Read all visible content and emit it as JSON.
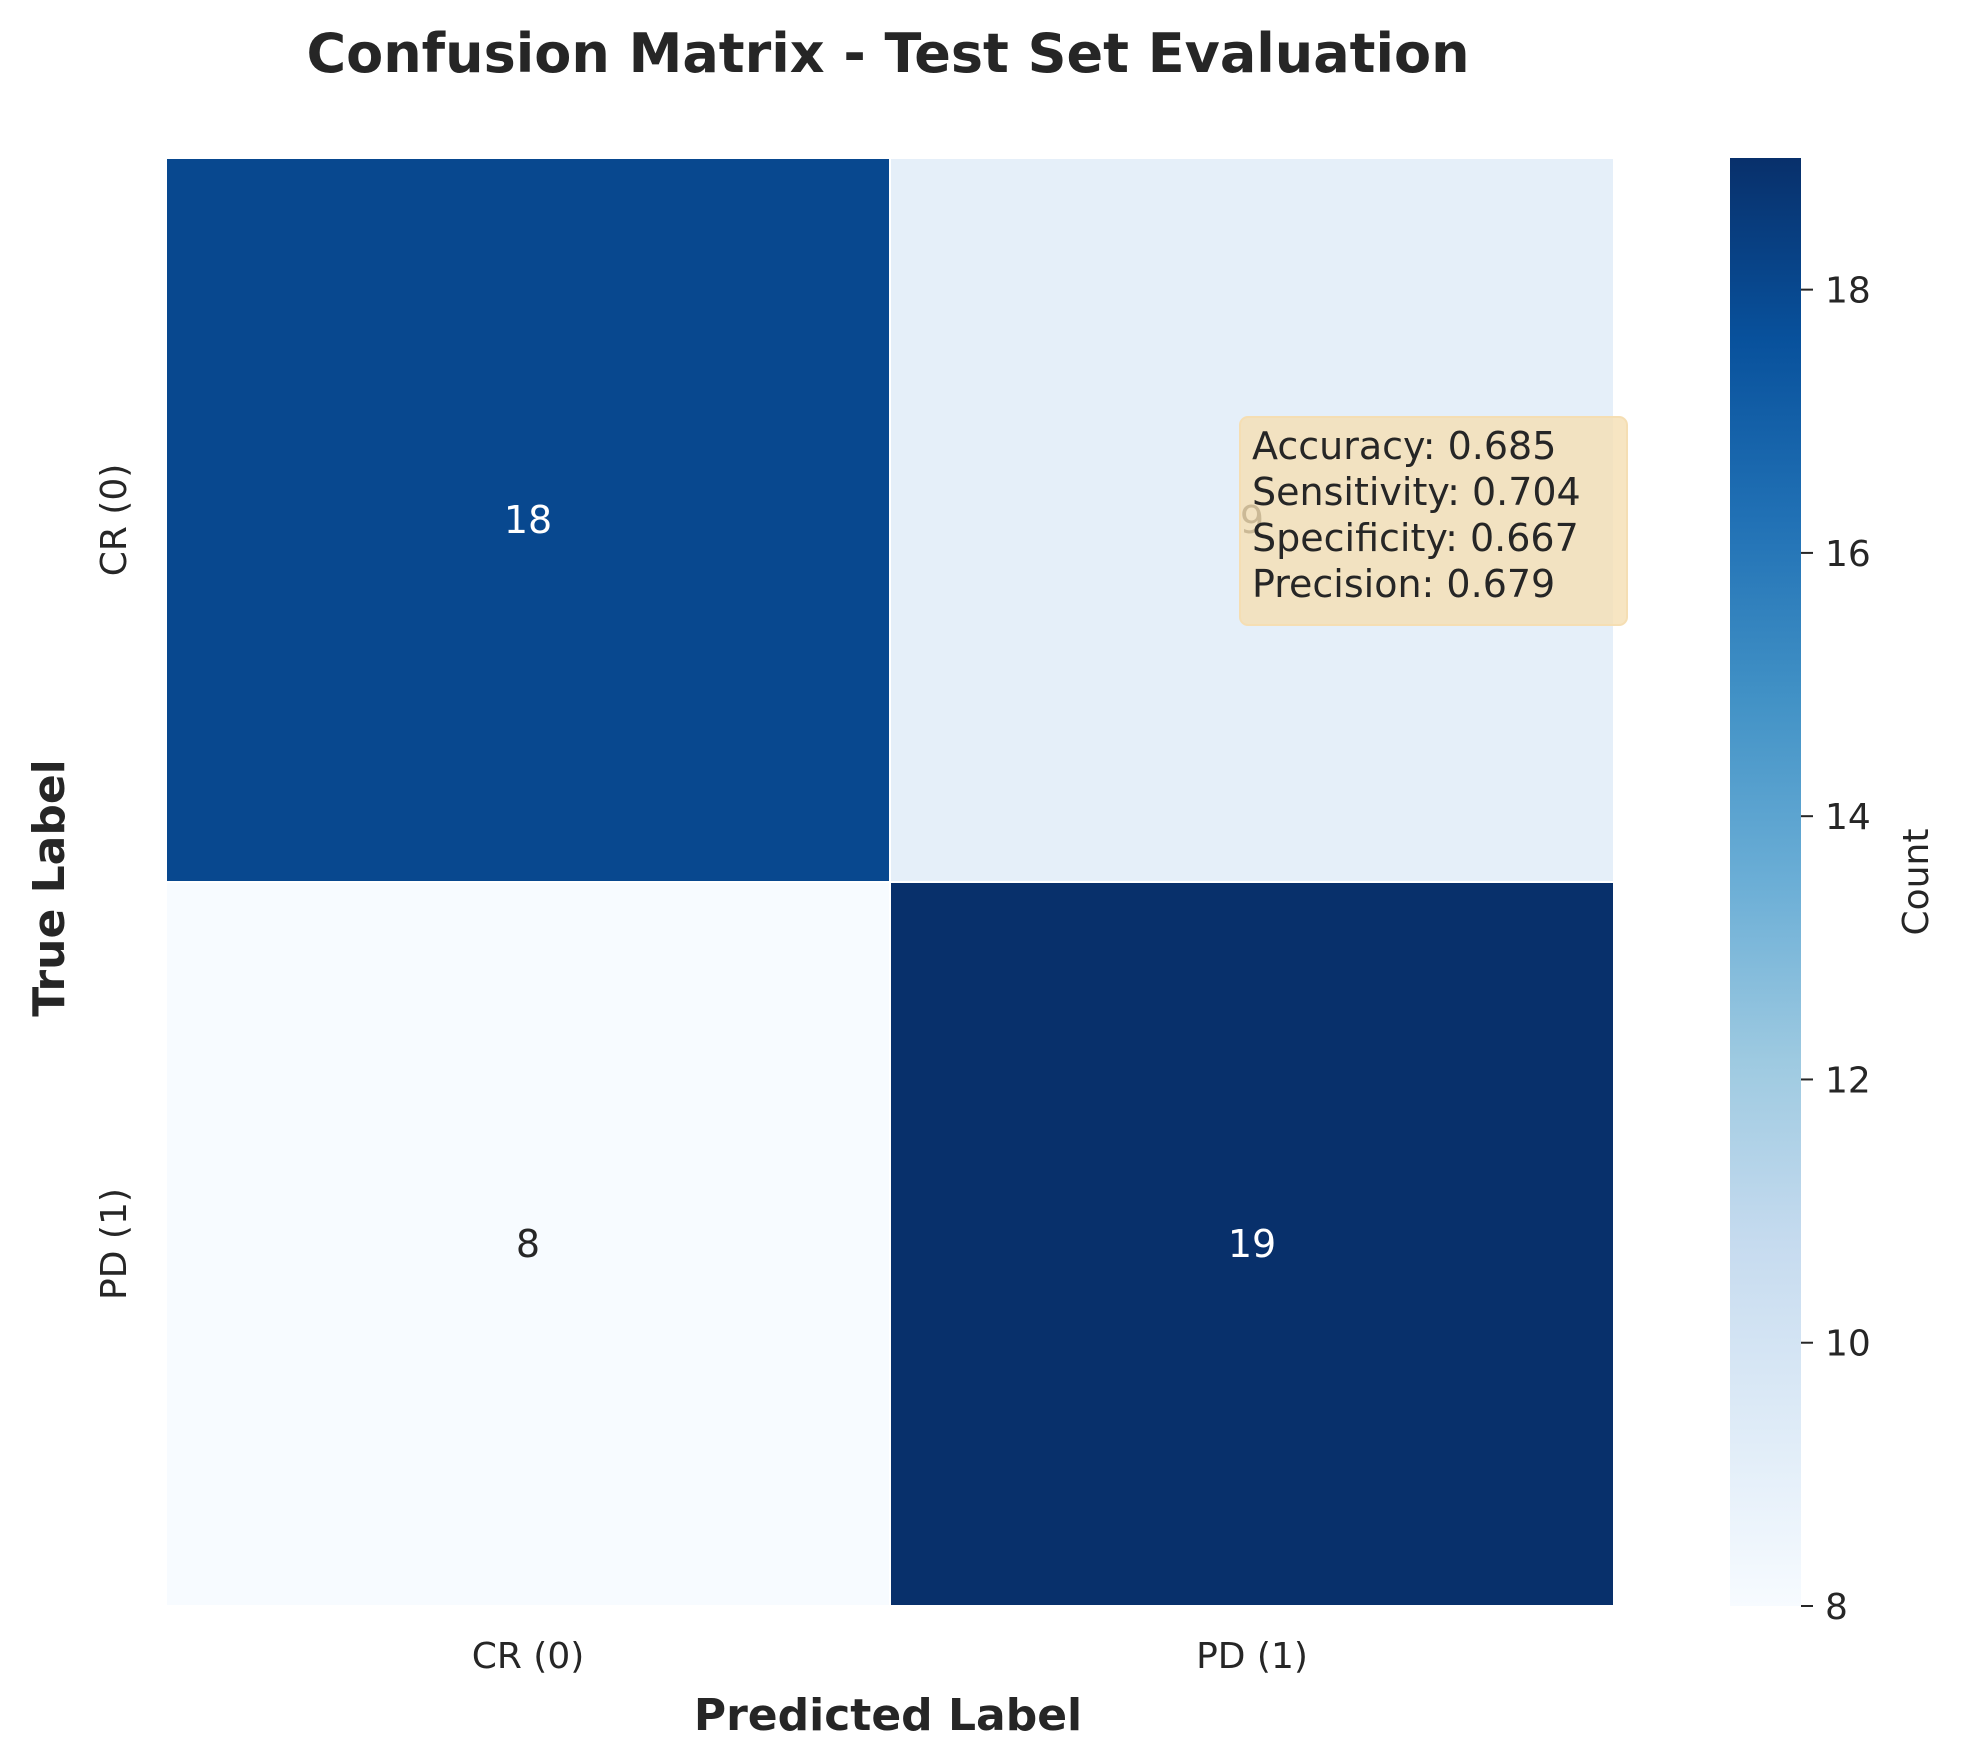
{
  "chart_data": {
    "type": "heatmap",
    "title": "Confusion Matrix - Test Set Evaluation",
    "xlabel": "Predicted Label",
    "ylabel": "True Label",
    "x_categories": [
      "CR (0)",
      "PD (1)"
    ],
    "y_categories": [
      "CR (0)",
      "PD (1)"
    ],
    "values": [
      [
        18,
        9
      ],
      [
        8,
        19
      ]
    ],
    "colormap": "Blues",
    "colorbar": {
      "label": "Count",
      "range": [
        8,
        19
      ],
      "ticks": [
        8,
        10,
        12,
        14,
        16,
        18
      ]
    },
    "metrics_box": {
      "lines": [
        "Accuracy: 0.685",
        "Sensitivity: 0.704",
        "Specificity: 0.667",
        "Precision: 0.679"
      ],
      "background": "#f5deb3"
    }
  }
}
